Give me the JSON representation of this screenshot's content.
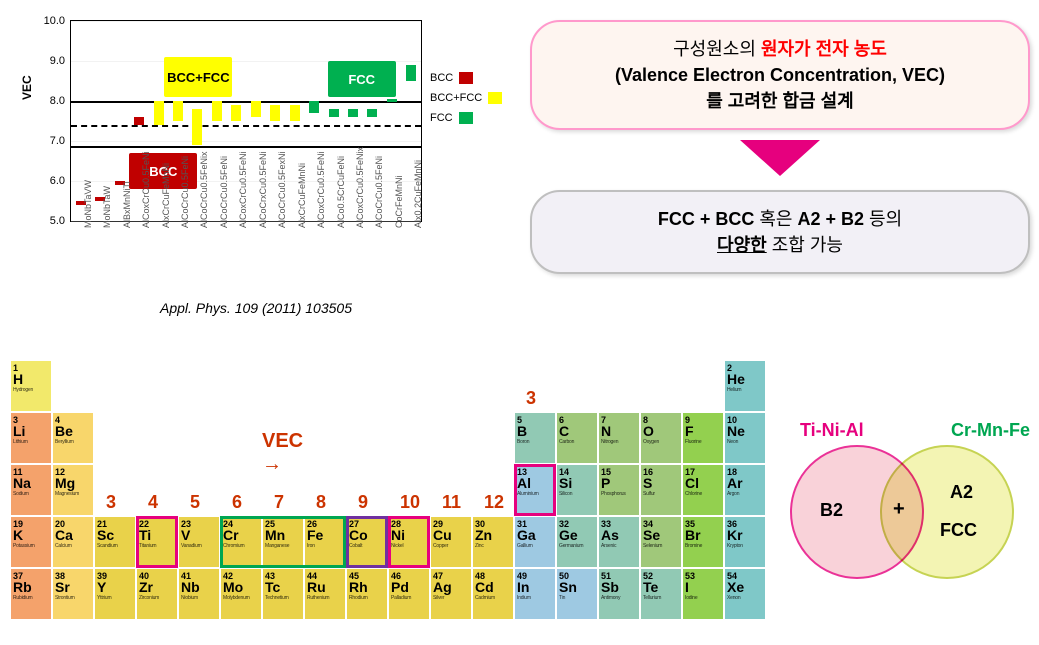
{
  "chart": {
    "type": "bar",
    "ylabel": "VEC",
    "ylim": [
      5.0,
      10.0
    ],
    "yticks": [
      5.0,
      6.0,
      7.0,
      8.0,
      9.0,
      10.0
    ],
    "band_solid": [
      6.87,
      8.0
    ],
    "band_dash": [
      7.4
    ],
    "highlights": [
      {
        "label": "BCC+FCC",
        "x": 4.8,
        "y_top": 9.1,
        "y_bot": 8.1,
        "bg": "#ffff00"
      },
      {
        "label": "BCC",
        "x": 3.0,
        "y_top": 6.7,
        "y_bot": 5.8,
        "bg": "#c00000",
        "fg": "#ffffff"
      },
      {
        "label": "FCC",
        "x": 13.2,
        "y_top": 9.0,
        "y_bot": 8.1,
        "bg": "#00b050",
        "fg": "#ffffff"
      }
    ],
    "colors": {
      "BCC": "#c00000",
      "BCC+FCC": "#ffff00",
      "FCC": "#00b050"
    },
    "series": [
      {
        "label": "MoNbTaVW",
        "phase": "BCC",
        "low": 5.4,
        "high": 5.5
      },
      {
        "label": "MoNbTaW",
        "phase": "BCC",
        "low": 5.5,
        "high": 5.6
      },
      {
        "label": "AlBxMnNiTi",
        "phase": "BCC",
        "low": 5.9,
        "high": 6.0
      },
      {
        "label": "AlCoxCrCu0.5FeNi",
        "phase": "BCC",
        "low": 7.4,
        "high": 7.6
      },
      {
        "label": "AlxCrCuFeMnNi",
        "phase": "BCC+FCC",
        "low": 7.4,
        "high": 8.0
      },
      {
        "label": "AlCoCrCu0.5FeNi",
        "phase": "BCC+FCC",
        "low": 7.5,
        "high": 8.0
      },
      {
        "label": "AlCoCrCu0.5FeNix",
        "phase": "BCC+FCC",
        "low": 6.9,
        "high": 7.8
      },
      {
        "label": "AlCoCrCu0.5FeNi",
        "phase": "BCC+FCC",
        "low": 7.5,
        "high": 8.0
      },
      {
        "label": "AlCoxCrCu0.5FeNi",
        "phase": "BCC+FCC",
        "low": 7.5,
        "high": 7.9
      },
      {
        "label": "AlCoCrxCu0.5FeNi",
        "phase": "BCC+FCC",
        "low": 7.6,
        "high": 8.0
      },
      {
        "label": "AlCoCrCu0.5FexNi",
        "phase": "BCC+FCC",
        "low": 7.5,
        "high": 7.9
      },
      {
        "label": "AlxCrCuFeMnNi",
        "phase": "BCC+FCC",
        "low": 7.5,
        "high": 7.9
      },
      {
        "label": "AlCoxCrCu0.5FeNi",
        "phase": "FCC",
        "low": 7.7,
        "high": 8.0
      },
      {
        "label": "AlCo0.5CrCuFeNi",
        "phase": "FCC",
        "low": 7.6,
        "high": 7.8
      },
      {
        "label": "AlCoxCrCu0.5FeNix",
        "phase": "FCC",
        "low": 7.6,
        "high": 7.8
      },
      {
        "label": "AlCoCrCu0.5FeNi",
        "phase": "FCC",
        "low": 7.6,
        "high": 7.8
      },
      {
        "label": "CoCrFeMnNi",
        "phase": "FCC",
        "low": 8.0,
        "high": 8.05
      },
      {
        "label": "Alx0.2CuFeMnNi",
        "phase": "FCC",
        "low": 8.5,
        "high": 8.9
      }
    ],
    "legend": [
      "BCC",
      "BCC+FCC",
      "FCC"
    ],
    "citation": "Appl. Phys. 109 (2011) 103505"
  },
  "callout1": {
    "pre": "구성원소의 ",
    "accent": "원자가 전자 농도",
    "line2": "(Valence Electron Concentration, VEC)",
    "line3": "를 고려한 합금 설계",
    "border": "#ff99cc",
    "bg": "#fef5f0",
    "accent_color": "#ff0000"
  },
  "triangle_color": "#e6007e",
  "callout2": {
    "a": "FCC + BCC",
    "b": " 혹은 ",
    "c": "A2 + B2",
    "d": " 등의",
    "e": "다양한",
    "f": " 조합 가능",
    "border": "#bfbfbf",
    "bg": "#f2f0f6"
  },
  "ptable": {
    "vec_label": "VEC →",
    "vec_label_color": "#cc3300",
    "group_numbers": [
      {
        "text": "3",
        "col": 2
      },
      {
        "text": "4",
        "col": 3
      },
      {
        "text": "5",
        "col": 4
      },
      {
        "text": "6",
        "col": 5
      },
      {
        "text": "7",
        "col": 6
      },
      {
        "text": "8",
        "col": 7
      },
      {
        "text": "9",
        "col": 8
      },
      {
        "text": "10",
        "col": 9
      },
      {
        "text": "11",
        "col": 10
      },
      {
        "text": "12",
        "col": 11
      }
    ],
    "group_number_color": "#cc3300",
    "extra_three": {
      "text": "3",
      "col": 12,
      "row": 0
    },
    "palette": {
      "alkali": "#f4a26b",
      "alkaline": "#f8d66b",
      "transition": "#E9D24A",
      "scandium": "#E9D24A",
      "metalloid": "#91c9b4",
      "nonmetal": "#a0c87a",
      "noble": "#7fc8c8",
      "posttrans": "#9ec9e2",
      "hydrogen": "#f2e96b"
    },
    "cells": [
      {
        "num": 1,
        "sym": "H",
        "name": "Hydrogen",
        "row": 0,
        "col": 0,
        "bg": "#f2e96b"
      },
      {
        "num": 2,
        "sym": "He",
        "name": "Helium",
        "row": 0,
        "col": 17,
        "bg": "#7fc8c8"
      },
      {
        "num": 3,
        "sym": "Li",
        "name": "Lithium",
        "row": 1,
        "col": 0,
        "bg": "#f4a26b"
      },
      {
        "num": 4,
        "sym": "Be",
        "name": "Beryllium",
        "row": 1,
        "col": 1,
        "bg": "#f8d66b"
      },
      {
        "num": 5,
        "sym": "B",
        "name": "Boron",
        "row": 1,
        "col": 12,
        "bg": "#91c9b4"
      },
      {
        "num": 6,
        "sym": "C",
        "name": "Carbon",
        "row": 1,
        "col": 13,
        "bg": "#a0c87a"
      },
      {
        "num": 7,
        "sym": "N",
        "name": "Nitrogen",
        "row": 1,
        "col": 14,
        "bg": "#a0c87a"
      },
      {
        "num": 8,
        "sym": "O",
        "name": "Oxygen",
        "row": 1,
        "col": 15,
        "bg": "#a0c87a"
      },
      {
        "num": 9,
        "sym": "F",
        "name": "Fluorine",
        "row": 1,
        "col": 16,
        "bg": "#93d04f"
      },
      {
        "num": 10,
        "sym": "Ne",
        "name": "Neon",
        "row": 1,
        "col": 17,
        "bg": "#7fc8c8"
      },
      {
        "num": 11,
        "sym": "Na",
        "name": "Sodium",
        "row": 2,
        "col": 0,
        "bg": "#f4a26b"
      },
      {
        "num": 12,
        "sym": "Mg",
        "name": "Magnesium",
        "row": 2,
        "col": 1,
        "bg": "#f8d66b"
      },
      {
        "num": 13,
        "sym": "Al",
        "name": "Aluminium",
        "row": 2,
        "col": 12,
        "bg": "#9ec9e2"
      },
      {
        "num": 14,
        "sym": "Si",
        "name": "Silicon",
        "row": 2,
        "col": 13,
        "bg": "#91c9b4"
      },
      {
        "num": 15,
        "sym": "P",
        "name": "Phosphorus",
        "row": 2,
        "col": 14,
        "bg": "#a0c87a"
      },
      {
        "num": 16,
        "sym": "S",
        "name": "Sulfur",
        "row": 2,
        "col": 15,
        "bg": "#a0c87a"
      },
      {
        "num": 17,
        "sym": "Cl",
        "name": "Chlorine",
        "row": 2,
        "col": 16,
        "bg": "#93d04f"
      },
      {
        "num": 18,
        "sym": "Ar",
        "name": "Argon",
        "row": 2,
        "col": 17,
        "bg": "#7fc8c8"
      },
      {
        "num": 19,
        "sym": "K",
        "name": "Potassium",
        "row": 3,
        "col": 0,
        "bg": "#f4a26b"
      },
      {
        "num": 20,
        "sym": "Ca",
        "name": "Calcium",
        "row": 3,
        "col": 1,
        "bg": "#f8d66b"
      },
      {
        "num": 21,
        "sym": "Sc",
        "name": "Scandium",
        "row": 3,
        "col": 2,
        "bg": "#E9D24A"
      },
      {
        "num": 22,
        "sym": "Ti",
        "name": "Titanium",
        "row": 3,
        "col": 3,
        "bg": "#E9D24A"
      },
      {
        "num": 23,
        "sym": "V",
        "name": "Vanadium",
        "row": 3,
        "col": 4,
        "bg": "#E9D24A"
      },
      {
        "num": 24,
        "sym": "Cr",
        "name": "Chromium",
        "row": 3,
        "col": 5,
        "bg": "#E9D24A"
      },
      {
        "num": 25,
        "sym": "Mn",
        "name": "Manganese",
        "row": 3,
        "col": 6,
        "bg": "#E9D24A"
      },
      {
        "num": 26,
        "sym": "Fe",
        "name": "Iron",
        "row": 3,
        "col": 7,
        "bg": "#E9D24A"
      },
      {
        "num": 27,
        "sym": "Co",
        "name": "Cobalt",
        "row": 3,
        "col": 8,
        "bg": "#E9D24A"
      },
      {
        "num": 28,
        "sym": "Ni",
        "name": "Nickel",
        "row": 3,
        "col": 9,
        "bg": "#E9D24A"
      },
      {
        "num": 29,
        "sym": "Cu",
        "name": "Copper",
        "row": 3,
        "col": 10,
        "bg": "#E9D24A"
      },
      {
        "num": 30,
        "sym": "Zn",
        "name": "Zinc",
        "row": 3,
        "col": 11,
        "bg": "#E9D24A"
      },
      {
        "num": 31,
        "sym": "Ga",
        "name": "Gallium",
        "row": 3,
        "col": 12,
        "bg": "#9ec9e2"
      },
      {
        "num": 32,
        "sym": "Ge",
        "name": "Germanium",
        "row": 3,
        "col": 13,
        "bg": "#91c9b4"
      },
      {
        "num": 33,
        "sym": "As",
        "name": "Arsenic",
        "row": 3,
        "col": 14,
        "bg": "#91c9b4"
      },
      {
        "num": 34,
        "sym": "Se",
        "name": "Selenium",
        "row": 3,
        "col": 15,
        "bg": "#a0c87a"
      },
      {
        "num": 35,
        "sym": "Br",
        "name": "Bromine",
        "row": 3,
        "col": 16,
        "bg": "#93d04f"
      },
      {
        "num": 36,
        "sym": "Kr",
        "name": "Krypton",
        "row": 3,
        "col": 17,
        "bg": "#7fc8c8"
      },
      {
        "num": 37,
        "sym": "Rb",
        "name": "Rubidium",
        "row": 4,
        "col": 0,
        "bg": "#f4a26b"
      },
      {
        "num": 38,
        "sym": "Sr",
        "name": "Strontium",
        "row": 4,
        "col": 1,
        "bg": "#f8d66b"
      },
      {
        "num": 39,
        "sym": "Y",
        "name": "Yttrium",
        "row": 4,
        "col": 2,
        "bg": "#E9D24A"
      },
      {
        "num": 40,
        "sym": "Zr",
        "name": "Zirconium",
        "row": 4,
        "col": 3,
        "bg": "#E9D24A"
      },
      {
        "num": 41,
        "sym": "Nb",
        "name": "Niobium",
        "row": 4,
        "col": 4,
        "bg": "#E9D24A"
      },
      {
        "num": 42,
        "sym": "Mo",
        "name": "Molybdenum",
        "row": 4,
        "col": 5,
        "bg": "#E9D24A"
      },
      {
        "num": 43,
        "sym": "Tc",
        "name": "Technetium",
        "row": 4,
        "col": 6,
        "bg": "#E9D24A"
      },
      {
        "num": 44,
        "sym": "Ru",
        "name": "Ruthenium",
        "row": 4,
        "col": 7,
        "bg": "#E9D24A"
      },
      {
        "num": 45,
        "sym": "Rh",
        "name": "Rhodium",
        "row": 4,
        "col": 8,
        "bg": "#E9D24A"
      },
      {
        "num": 46,
        "sym": "Pd",
        "name": "Palladium",
        "row": 4,
        "col": 9,
        "bg": "#E9D24A"
      },
      {
        "num": 47,
        "sym": "Ag",
        "name": "Silver",
        "row": 4,
        "col": 10,
        "bg": "#E9D24A"
      },
      {
        "num": 48,
        "sym": "Cd",
        "name": "Cadmium",
        "row": 4,
        "col": 11,
        "bg": "#E9D24A"
      },
      {
        "num": 49,
        "sym": "In",
        "name": "Indium",
        "row": 4,
        "col": 12,
        "bg": "#9ec9e2"
      },
      {
        "num": 50,
        "sym": "Sn",
        "name": "Tin",
        "row": 4,
        "col": 13,
        "bg": "#9ec9e2"
      },
      {
        "num": 51,
        "sym": "Sb",
        "name": "Antimony",
        "row": 4,
        "col": 14,
        "bg": "#91c9b4"
      },
      {
        "num": 52,
        "sym": "Te",
        "name": "Tellurium",
        "row": 4,
        "col": 15,
        "bg": "#91c9b4"
      },
      {
        "num": 53,
        "sym": "I",
        "name": "Iodine",
        "row": 4,
        "col": 16,
        "bg": "#93d04f"
      },
      {
        "num": 54,
        "sym": "Xe",
        "name": "Xenon",
        "row": 4,
        "col": 17,
        "bg": "#7fc8c8"
      }
    ],
    "frames": [
      {
        "col": 3,
        "row": 3,
        "span": 1,
        "color": "#e6007e"
      },
      {
        "col": 5,
        "row": 3,
        "span": 3,
        "color": "#00a651"
      },
      {
        "col": 8,
        "row": 3,
        "span": 1,
        "color": "#7030a0"
      },
      {
        "col": 9,
        "row": 3,
        "span": 1,
        "color": "#e6007e"
      },
      {
        "col": 12,
        "row": 2,
        "span": 1,
        "color": "#e6007e"
      }
    ]
  },
  "venn": {
    "left_title": "Ti-Ni-Al",
    "left_title_color": "#e6007e",
    "right_title": "Cr-Mn-Fe",
    "right_title_color": "#00a651",
    "left_label": "B2",
    "right_label_top": "A2",
    "right_label_bot": "FCC",
    "plus": "+",
    "left_fill": "#f8c8d0",
    "left_border": "#e6007e",
    "right_fill": "#f0f2a0",
    "right_border": "#b8c828"
  }
}
